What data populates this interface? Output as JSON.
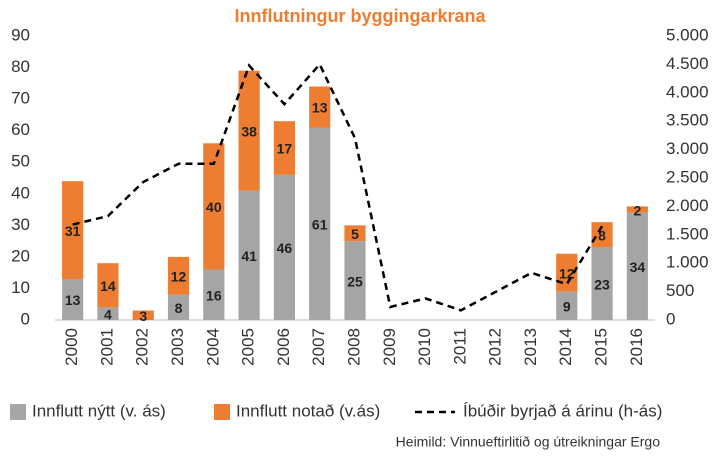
{
  "chart_data": {
    "type": "bar",
    "title": "Innflutningur byggingarkrana",
    "source": "Heimild: Vinnueftirlitið og útreikningar Ergo",
    "categories": [
      "2000",
      "2001",
      "2002",
      "2003",
      "2004",
      "2005",
      "2006",
      "2007",
      "2008",
      "2009",
      "2010",
      "2011",
      "2012",
      "2013",
      "2014",
      "2015",
      "2016"
    ],
    "series": [
      {
        "name": "Innflutt nýtt (v. ás)",
        "color": "#a5a5a5",
        "values": [
          13,
          4,
          null,
          8,
          16,
          41,
          46,
          61,
          25,
          null,
          null,
          null,
          null,
          null,
          9,
          23,
          34
        ]
      },
      {
        "name": "Innflutt notað (v.ás)",
        "color": "#ed7d31",
        "values": [
          31,
          14,
          3,
          12,
          40,
          38,
          17,
          13,
          5,
          null,
          null,
          null,
          null,
          null,
          12,
          8,
          2
        ]
      },
      {
        "name": "Íbúðir byrjað á árinu (h-ás)",
        "color": "#000000",
        "axis": "y2",
        "type": "line",
        "values": [
          1680,
          1830,
          2430,
          2750,
          2750,
          4480,
          3800,
          4500,
          3200,
          230,
          380,
          170,
          500,
          830,
          630,
          1650,
          null
        ]
      }
    ],
    "ylim": [
      0,
      90
    ],
    "yticks": [
      0,
      10,
      20,
      30,
      40,
      50,
      60,
      70,
      80,
      90
    ],
    "y2lim": [
      0,
      5000
    ],
    "y2ticks": [
      0,
      {
        "value": 500,
        "label": "500"
      },
      {
        "value": 1000,
        "label": "1.000"
      },
      {
        "value": 1500,
        "label": "1.500"
      },
      {
        "value": 2000,
        "label": "2.000"
      },
      {
        "value": 2500,
        "label": "2.500"
      },
      {
        "value": 3000,
        "label": "3.000"
      },
      {
        "value": 3500,
        "label": "3.500"
      },
      {
        "value": 4000,
        "label": "4.000"
      },
      {
        "value": 4500,
        "label": "4.500"
      },
      {
        "value": 5000,
        "label": "5.000"
      }
    ],
    "stacked": true,
    "legend": "bottom"
  }
}
